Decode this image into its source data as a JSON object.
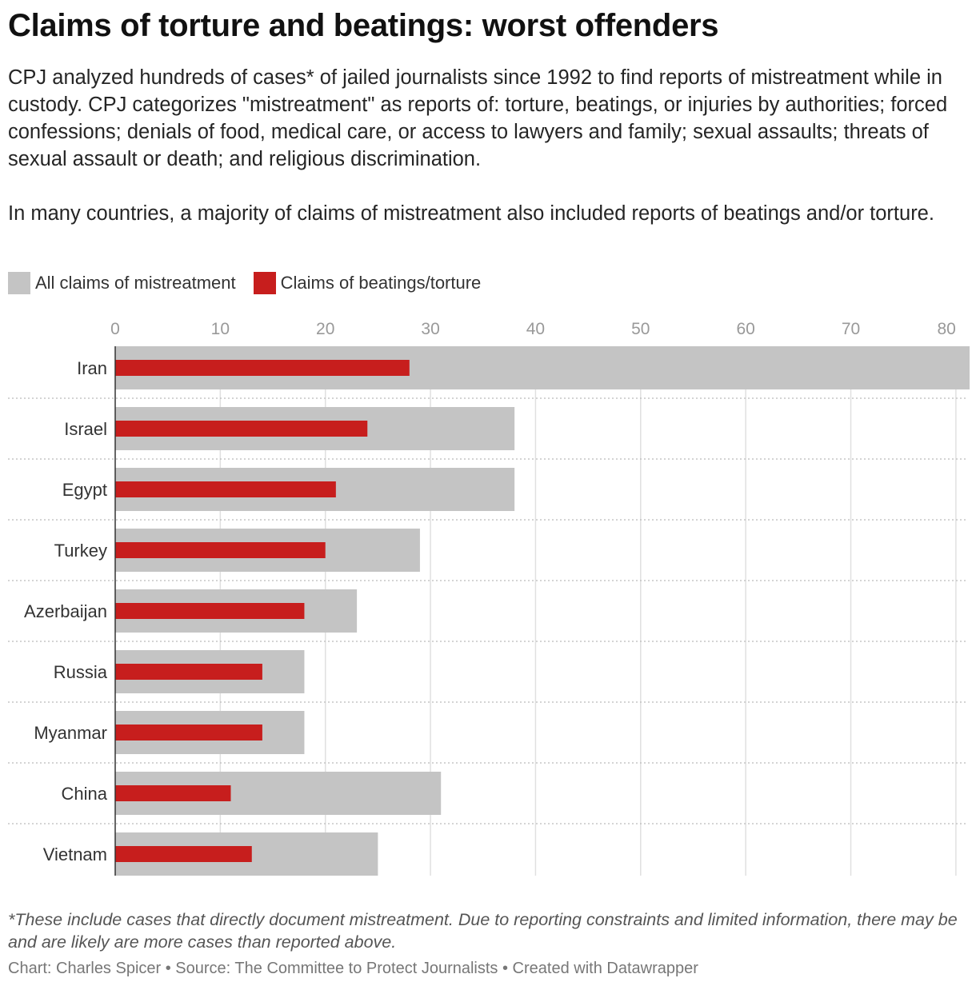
{
  "header": {
    "title": "Claims of torture and beatings: worst offenders",
    "intro_p1": "CPJ analyzed hundreds of cases* of jailed journalists since 1992 to find reports of mistreatment while in custody. CPJ categorizes \"mistreatment\" as reports of: torture, beatings, or injuries by authorities; forced confessions; denials of food, medical care, or access to lawyers and family; sexual assaults; threats of sexual assault or death; and religious discrimination.",
    "intro_p2": "In many countries, a majority of claims of mistreatment also included reports of beatings and/or torture."
  },
  "legend": {
    "all_label": "All claims of mistreatment",
    "beatings_label": "Claims of beatings/torture"
  },
  "colors": {
    "all_claims": "#c4c4c4",
    "beatings": "#c71e1d",
    "gridline": "#e0e0e0",
    "tick_text": "#999999",
    "label_text": "#333333"
  },
  "chart_data": {
    "type": "bar",
    "orientation": "horizontal",
    "categories": [
      "Iran",
      "Israel",
      "Egypt",
      "Turkey",
      "Azerbaijan",
      "Russia",
      "Myanmar",
      "China",
      "Vietnam"
    ],
    "series": [
      {
        "name": "All claims of mistreatment",
        "values": [
          84,
          38,
          38,
          29,
          23,
          18,
          18,
          31,
          25
        ]
      },
      {
        "name": "Claims of beatings/torture",
        "values": [
          28,
          24,
          21,
          20,
          18,
          14,
          14,
          11,
          13
        ]
      }
    ],
    "xlim": [
      0,
      81
    ],
    "xticks": [
      0,
      10,
      20,
      30,
      40,
      50,
      60,
      70,
      80
    ],
    "grid": true,
    "legend_position": "top-left"
  },
  "footer": {
    "notes": "*These include cases that directly document mistreatment. Due to reporting constraints and limited information, there may be and are likely are more cases than reported above.",
    "byline": "Chart: Charles Spicer • Source: The Committee to Protect Journalists • Created with Datawrapper"
  }
}
